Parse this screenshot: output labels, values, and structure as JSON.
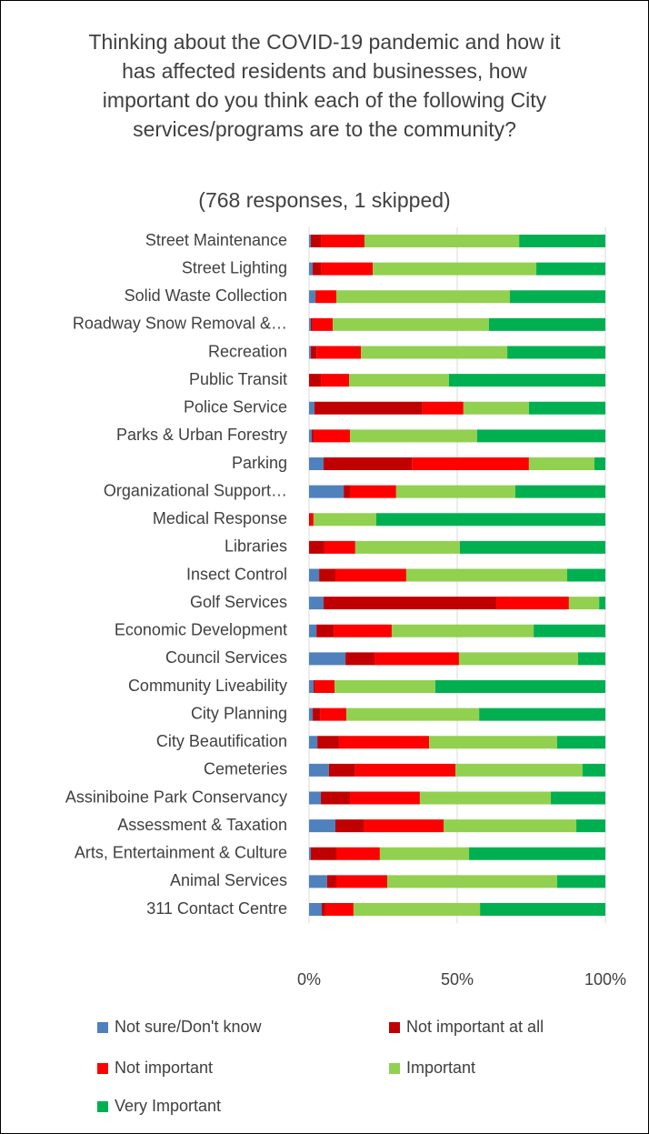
{
  "chart_data": {
    "type": "stacked_barh",
    "title": "Thinking about the COVID-19 pandemic and how it has affected residents and businesses, how important do you think each of the following City services/programs are to the community?",
    "subtitle": "(768 responses, 1 skipped)",
    "categories": [
      "Street Maintenance",
      "Street Lighting",
      "Solid Waste Collection",
      "Roadway Snow Removal &…",
      "Recreation",
      "Public Transit",
      "Police Service",
      "Parks & Urban Forestry",
      "Parking",
      "Organizational Support…",
      "Medical Response",
      "Libraries",
      "Insect Control",
      "Golf Services",
      "Economic Development",
      "Council Services",
      "Community Liveability",
      "City Planning",
      "City Beautification",
      "Cemeteries",
      "Assiniboine Park Conservancy",
      "Assessment & Taxation",
      "Arts, Entertainment & Culture",
      "Animal Services",
      "311 Contact Centre"
    ],
    "series": [
      {
        "name": "Not sure/Don't know",
        "color": "#4f81bd",
        "values": [
          0.6,
          1.2,
          2.1,
          0.6,
          0.6,
          0,
          1.8,
          0.9,
          4.9,
          11.7,
          0,
          0,
          3.4,
          4.9,
          2.5,
          12.3,
          1.5,
          1.2,
          2.8,
          6.7,
          4.0,
          8.9,
          0.6,
          6.1,
          4.3
        ]
      },
      {
        "name": "Not important at all",
        "color": "#c00000",
        "values": [
          3.4,
          2.8,
          0.3,
          0.6,
          1.9,
          4.0,
          36.5,
          0.9,
          29.8,
          2.1,
          0.3,
          5.2,
          5.5,
          58.3,
          5.8,
          9.8,
          0.6,
          2.5,
          7.3,
          8.9,
          9.8,
          9.5,
          8.6,
          3.1,
          1.2
        ]
      },
      {
        "name": "Not important",
        "color": "#ff0000",
        "values": [
          14.7,
          17.5,
          6.8,
          6.8,
          15.0,
          9.5,
          13.8,
          12.0,
          39.5,
          15.6,
          1.2,
          10.4,
          23.9,
          24.5,
          19.6,
          28.5,
          6.5,
          8.9,
          30.4,
          33.8,
          23.6,
          27.0,
          14.7,
          17.2,
          9.5
        ]
      },
      {
        "name": "Important",
        "color": "#92d050",
        "values": [
          52.2,
          55.2,
          58.6,
          52.7,
          49.4,
          33.7,
          22.1,
          42.9,
          22.1,
          40.2,
          21.2,
          35.3,
          54.3,
          10.2,
          47.9,
          40.2,
          34.0,
          44.8,
          43.2,
          42.9,
          44.2,
          44.8,
          30.1,
          57.3,
          42.7
        ]
      },
      {
        "name": "Very Important",
        "color": "#00b050",
        "values": [
          29.1,
          23.3,
          32.2,
          39.3,
          33.1,
          52.8,
          25.8,
          43.3,
          3.7,
          30.4,
          77.3,
          49.1,
          12.9,
          2.1,
          24.2,
          9.2,
          57.4,
          42.6,
          16.3,
          7.7,
          18.4,
          9.8,
          46.0,
          16.3,
          42.3
        ]
      }
    ],
    "xlim": [
      0,
      100
    ],
    "xticks": [
      {
        "value": 0,
        "label": "0%"
      },
      {
        "value": 50,
        "label": "50%"
      },
      {
        "value": 100,
        "label": "100%"
      }
    ],
    "grid": true
  }
}
